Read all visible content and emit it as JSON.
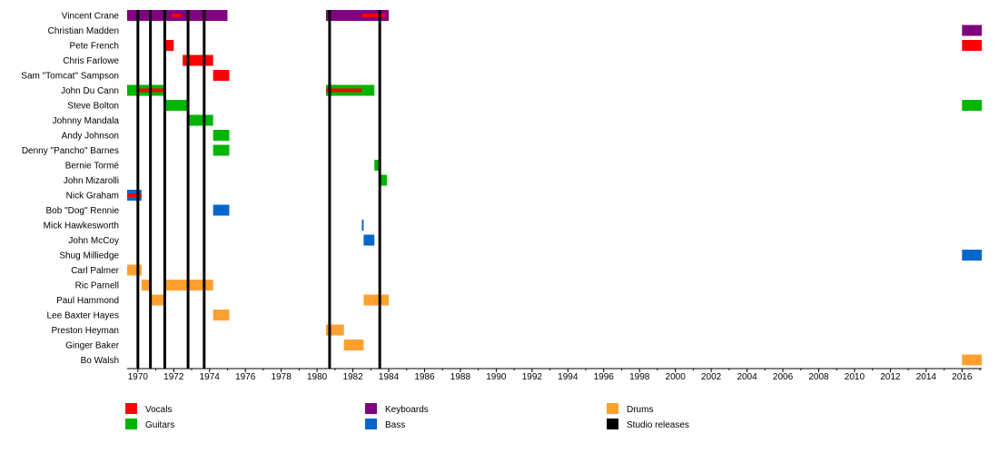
{
  "chart_data": {
    "type": "timeline",
    "x_range": [
      1969.4,
      2017.1
    ],
    "x_ticks": [
      "1970",
      "1972",
      "1974",
      "1976",
      "1978",
      "1980",
      "1982",
      "1984",
      "1986",
      "1988",
      "1990",
      "1992",
      "1994",
      "1996",
      "1998",
      "2000",
      "2002",
      "2004",
      "2006",
      "2008",
      "2010",
      "2012",
      "2014",
      "2016"
    ],
    "members": [
      "Vincent Crane",
      "Christian Madden",
      "Pete French",
      "Chris Farlowe",
      "Sam \"Tomcat\" Sampson",
      "John Du Cann",
      "Steve Bolton",
      "Johnny Mandala",
      "Andy Johnson",
      "Denny \"Pancho\" Barnes",
      "Bernie Tormé",
      "John Mizarolli",
      "Nick Graham",
      "Bob \"Dog\" Rennie",
      "Mick Hawkesworth",
      "John McCoy",
      "Shug Milliedge",
      "Carl Palmer",
      "Ric Parnell",
      "Paul Hammond",
      "Lee Baxter Hayes",
      "Preston Heyman",
      "Ginger Baker",
      "Bo Walsh"
    ],
    "roles": {
      "vocals": {
        "label": "Vocals",
        "color": "#ff0000"
      },
      "guitars": {
        "label": "Guitars",
        "color": "#00b400"
      },
      "keyboards": {
        "label": "Keyboards",
        "color": "#800080"
      },
      "bass": {
        "label": "Bass",
        "color": "#0066cc"
      },
      "drums": {
        "label": "Drums",
        "color": "#ffa030"
      },
      "studio": {
        "label": "Studio releases",
        "color": "#000000"
      }
    },
    "bars": [
      {
        "member": 0,
        "role": "keyboards",
        "start": 1969.4,
        "end": 1975.0
      },
      {
        "member": 0,
        "role": "keyboards",
        "start": 1980.5,
        "end": 1984.0
      },
      {
        "member": 1,
        "role": "keyboards",
        "start": 2016.0,
        "end": 2017.1
      },
      {
        "member": 2,
        "role": "vocals",
        "start": 1971.5,
        "end": 1972.0
      },
      {
        "member": 2,
        "role": "vocals",
        "start": 2016.0,
        "end": 2017.1
      },
      {
        "member": 3,
        "role": "vocals",
        "start": 1972.5,
        "end": 1974.2
      },
      {
        "member": 4,
        "role": "vocals",
        "start": 1974.2,
        "end": 1975.1
      },
      {
        "member": 5,
        "role": "guitars",
        "start": 1969.4,
        "end": 1971.5
      },
      {
        "member": 5,
        "role": "guitars",
        "start": 1980.5,
        "end": 1983.2
      },
      {
        "member": 6,
        "role": "guitars",
        "start": 1971.5,
        "end": 1972.8
      },
      {
        "member": 6,
        "role": "guitars",
        "start": 2016.0,
        "end": 2017.1
      },
      {
        "member": 7,
        "role": "guitars",
        "start": 1972.8,
        "end": 1974.2
      },
      {
        "member": 8,
        "role": "guitars",
        "start": 1974.2,
        "end": 1975.1
      },
      {
        "member": 9,
        "role": "guitars",
        "start": 1974.2,
        "end": 1975.1
      },
      {
        "member": 10,
        "role": "guitars",
        "start": 1983.2,
        "end": 1983.5
      },
      {
        "member": 11,
        "role": "guitars",
        "start": 1983.5,
        "end": 1983.9
      },
      {
        "member": 12,
        "role": "bass",
        "start": 1969.4,
        "end": 1970.2
      },
      {
        "member": 13,
        "role": "bass",
        "start": 1974.2,
        "end": 1975.1
      },
      {
        "member": 14,
        "role": "bass",
        "start": 1982.5,
        "end": 1982.6
      },
      {
        "member": 15,
        "role": "bass",
        "start": 1982.6,
        "end": 1983.2
      },
      {
        "member": 16,
        "role": "bass",
        "start": 2016.0,
        "end": 2017.1
      },
      {
        "member": 17,
        "role": "drums",
        "start": 1969.4,
        "end": 1970.2
      },
      {
        "member": 18,
        "role": "drums",
        "start": 1970.2,
        "end": 1970.7
      },
      {
        "member": 18,
        "role": "drums",
        "start": 1971.5,
        "end": 1974.2
      },
      {
        "member": 19,
        "role": "drums",
        "start": 1970.7,
        "end": 1971.5
      },
      {
        "member": 19,
        "role": "drums",
        "start": 1982.6,
        "end": 1984.0
      },
      {
        "member": 20,
        "role": "drums",
        "start": 1974.2,
        "end": 1975.1
      },
      {
        "member": 21,
        "role": "drums",
        "start": 1980.5,
        "end": 1981.5
      },
      {
        "member": 22,
        "role": "drums",
        "start": 1981.5,
        "end": 1982.6
      },
      {
        "member": 23,
        "role": "drums",
        "start": 2016.0,
        "end": 2017.1
      }
    ],
    "overlays": [
      {
        "member": 0,
        "role": "vocals",
        "start": 1971.9,
        "end": 1972.4
      },
      {
        "member": 0,
        "role": "vocals",
        "start": 1982.5,
        "end": 1983.8
      },
      {
        "member": 5,
        "role": "vocals",
        "start": 1970.1,
        "end": 1971.5
      },
      {
        "member": 5,
        "role": "vocals",
        "start": 1980.5,
        "end": 1982.5
      },
      {
        "member": 12,
        "role": "vocals",
        "start": 1969.4,
        "end": 1970.2
      }
    ],
    "studio_releases": [
      1970.0,
      1970.7,
      1971.5,
      1972.8,
      1973.7,
      1980.7,
      1983.5
    ],
    "legend": [
      {
        "role": "vocals",
        "col": 0,
        "row": 0
      },
      {
        "role": "guitars",
        "col": 0,
        "row": 1
      },
      {
        "role": "keyboards",
        "col": 1,
        "row": 0
      },
      {
        "role": "bass",
        "col": 1,
        "row": 1
      },
      {
        "role": "drums",
        "col": 2,
        "row": 0
      },
      {
        "role": "studio",
        "col": 2,
        "row": 1
      }
    ]
  }
}
